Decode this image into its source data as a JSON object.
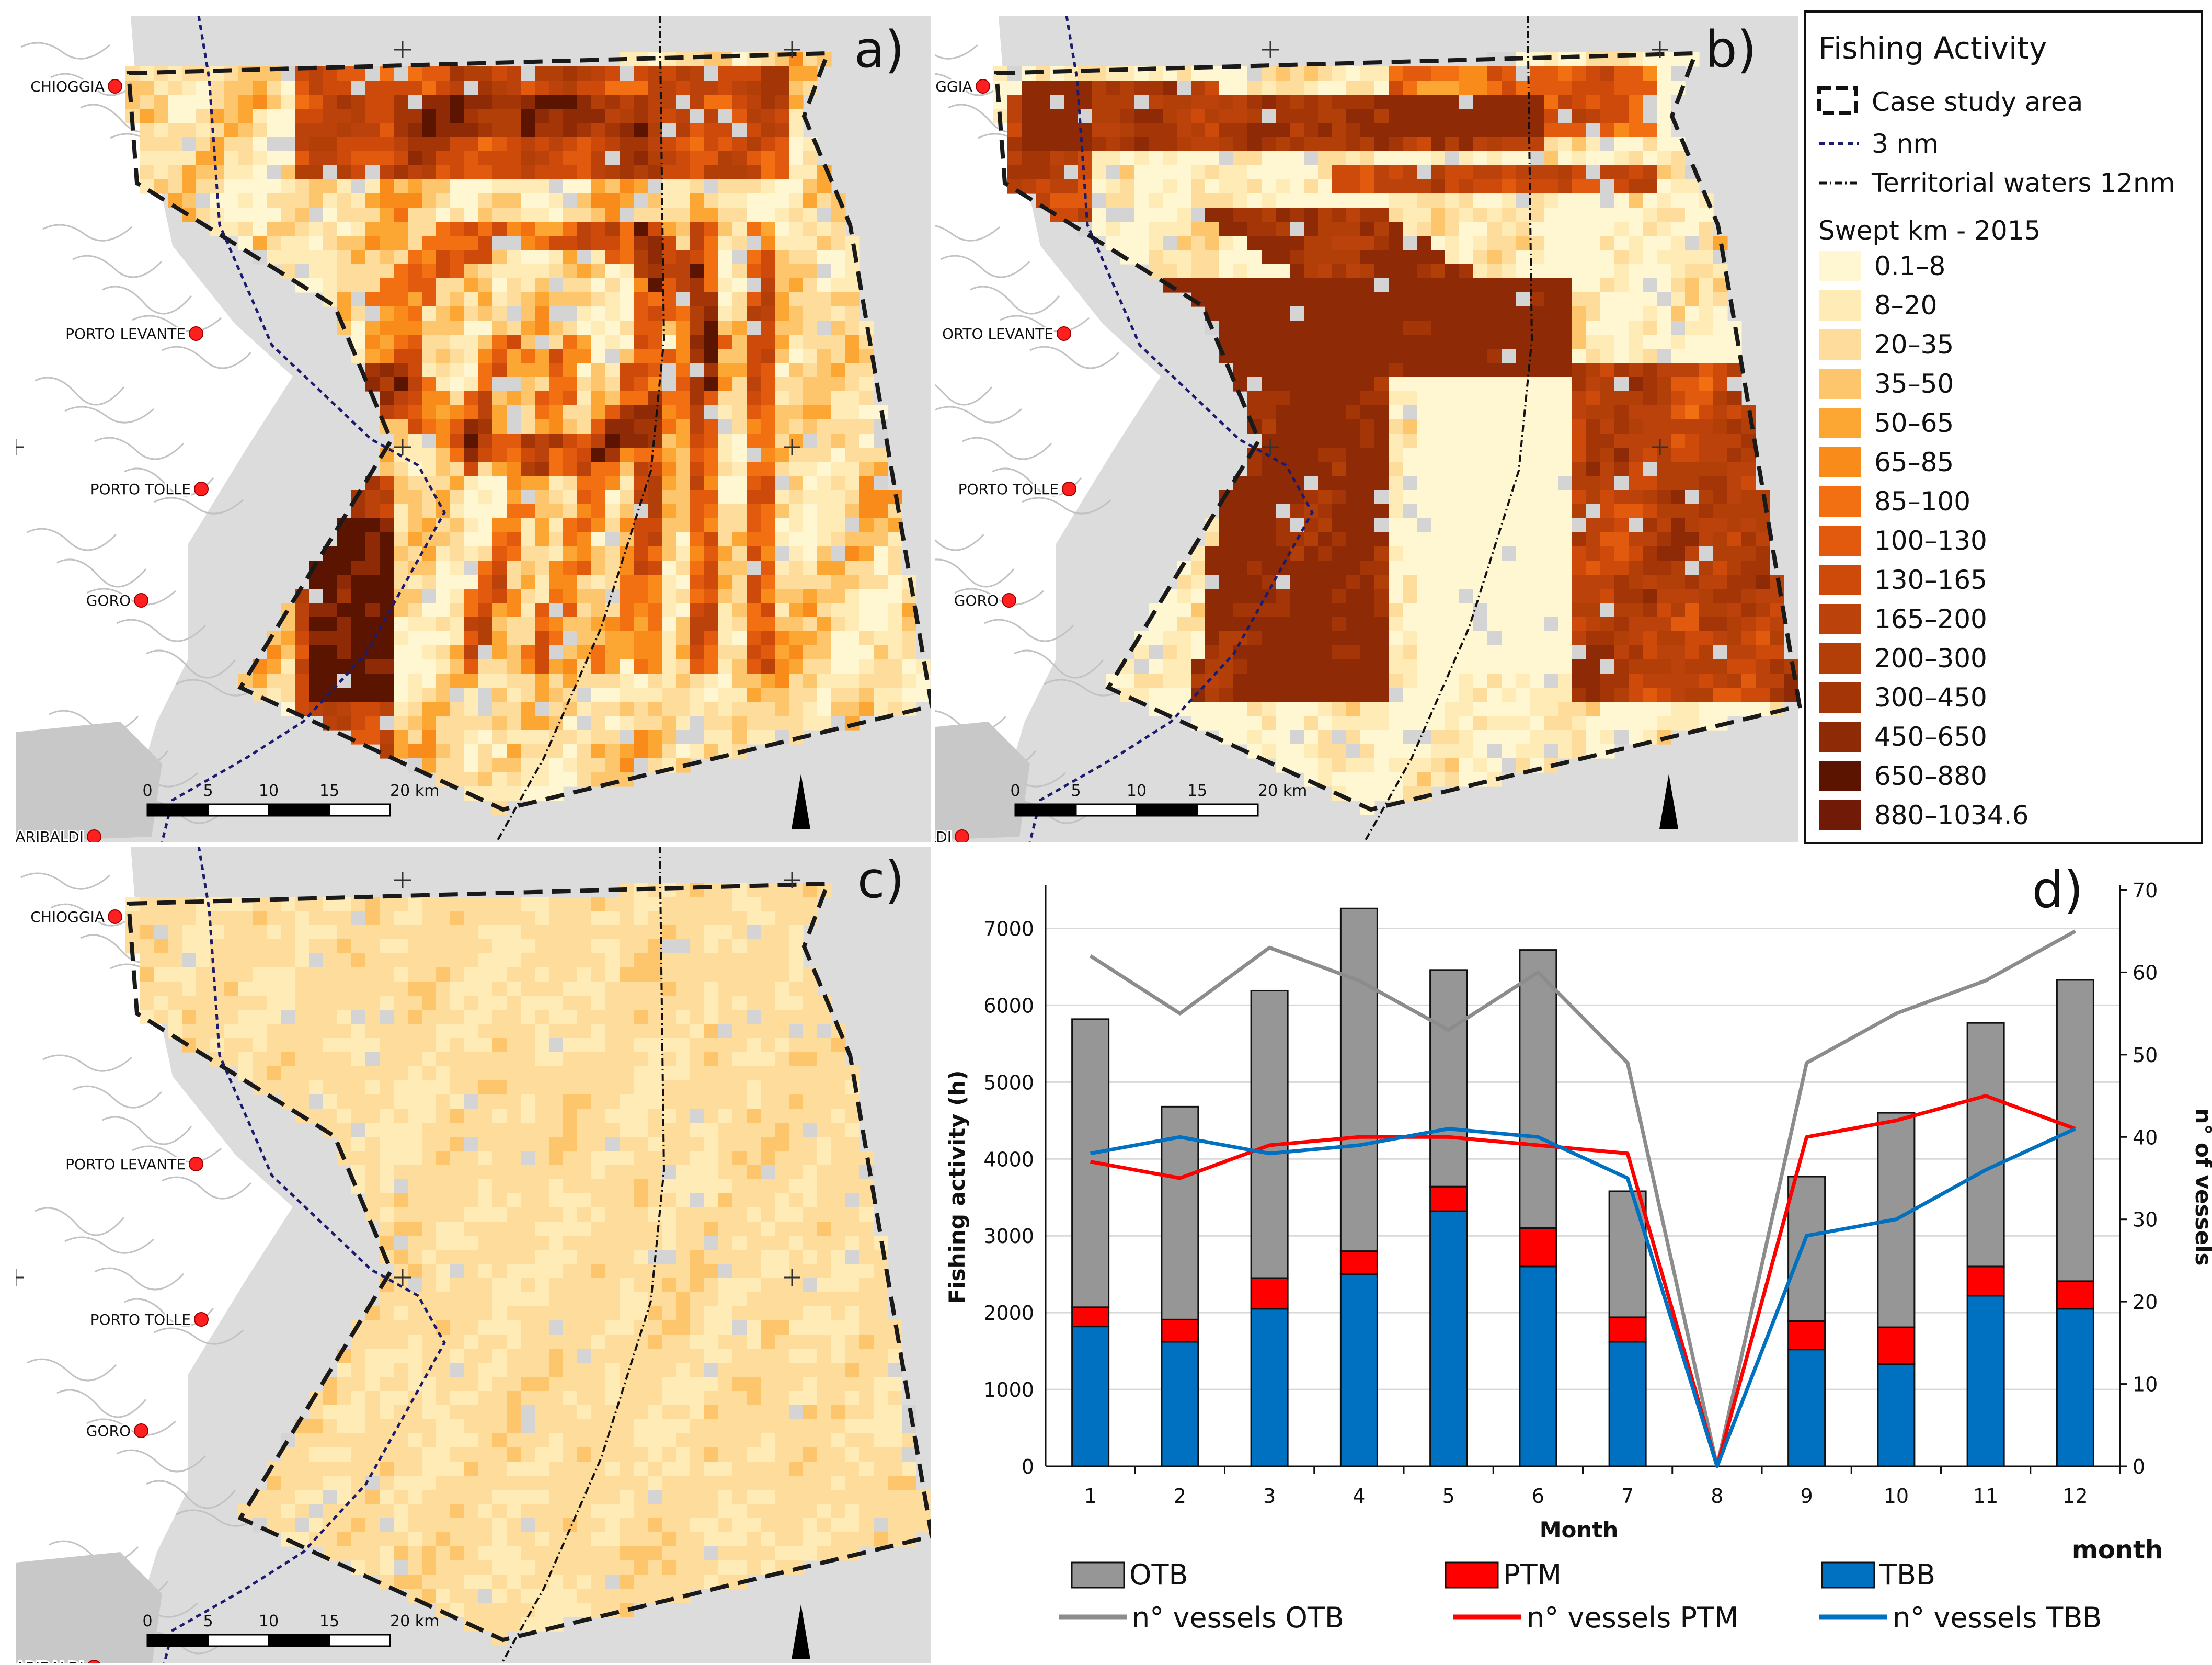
{
  "panels": [
    {
      "id": "a",
      "label": "a)",
      "grid": "a"
    },
    {
      "id": "b",
      "label": "b)",
      "grid": "b"
    },
    {
      "id": "c",
      "label": "c)",
      "grid": "c"
    }
  ],
  "towns": [
    {
      "name": "CHIOGGIA",
      "a": "CHIOGGIA",
      "b": "IOGGIA",
      "c": "CHIOGGIA"
    },
    {
      "name": "PORTO LEVANTE",
      "a": "PORTO LEVANTE",
      "b": "ORTO LEVANTE",
      "c": "PORTO LEVANTE"
    },
    {
      "name": "PORTO TOLLE",
      "a": "PORTO TOLLE",
      "b": "PORTO TOLLE",
      "c": "PORTO TOLLE"
    },
    {
      "name": "GORO",
      "a": "GORO",
      "b": "GORO",
      "c": "GORO"
    },
    {
      "name": "GARIBALDI",
      "a": "ARIBALDI",
      "b": "LDI",
      "c": "ARIBALDI"
    }
  ],
  "scalebar": {
    "ticks": [
      "0",
      "5",
      "10",
      "15",
      "20 km"
    ]
  },
  "legend": {
    "title": "Fishing Activity",
    "case_study": "Case study area",
    "nm3": "3 nm",
    "territorial": "Territorial waters 12nm",
    "swept_title": "Swept km - 2015",
    "classes": [
      {
        "label": "0.1–8",
        "color": "#fff6d2"
      },
      {
        "label": "8–20",
        "color": "#ffebb5"
      },
      {
        "label": "20–35",
        "color": "#fedc9c"
      },
      {
        "label": "35–50",
        "color": "#fdc56c"
      },
      {
        "label": "50–65",
        "color": "#fca634"
      },
      {
        "label": "65–85",
        "color": "#f98b1a"
      },
      {
        "label": "85–100",
        "color": "#f26f12"
      },
      {
        "label": "100–130",
        "color": "#e25a0d"
      },
      {
        "label": "130–165",
        "color": "#cd4a0b"
      },
      {
        "label": "165–200",
        "color": "#bb420a"
      },
      {
        "label": "200–300",
        "color": "#b23f08"
      },
      {
        "label": "300–450",
        "color": "#a43507"
      },
      {
        "label": "450–650",
        "color": "#8e2a05"
      },
      {
        "label": "650–880",
        "color": "#5a1400"
      },
      {
        "label": "880–1034.6",
        "color": "#711a08"
      }
    ]
  },
  "chart_data": {
    "type": "bar",
    "panel_label": "d)",
    "title": "",
    "xlabel": "Month",
    "ylabel": "Fishing activity (h)",
    "y2label": "n° of vessels",
    "extra_label": "month",
    "categories": [
      "1",
      "2",
      "3",
      "4",
      "5",
      "6",
      "7",
      "8",
      "9",
      "10",
      "11",
      "12"
    ],
    "ylim": [
      0,
      7500
    ],
    "yticks": [
      "0",
      "1000",
      "2000",
      "3000",
      "4000",
      "5000",
      "6000",
      "7000"
    ],
    "y2lim": [
      0,
      70
    ],
    "y2ticks": [
      "0",
      "10",
      "20",
      "30",
      "40",
      "50",
      "60",
      "70"
    ],
    "stacked_series": [
      {
        "name": "TBB",
        "color": "#0070c0",
        "values": [
          1820,
          1620,
          2050,
          2500,
          3320,
          2600,
          1620,
          0,
          1520,
          1330,
          2220,
          2050
        ]
      },
      {
        "name": "PTM",
        "color": "#ff0000",
        "values": [
          250,
          290,
          400,
          300,
          320,
          500,
          320,
          0,
          370,
          480,
          380,
          360
        ]
      },
      {
        "name": "OTB",
        "color": "#969696",
        "values": [
          3750,
          2770,
          3740,
          4460,
          2820,
          3620,
          1640,
          0,
          1880,
          2790,
          3170,
          3920
        ]
      }
    ],
    "line_series": [
      {
        "name": "n° vessels OTB",
        "color": "#8c8c8c",
        "values": [
          62,
          55,
          63,
          59,
          53,
          60,
          49,
          0,
          49,
          55,
          59,
          65
        ]
      },
      {
        "name": "n° vessels PTM",
        "color": "#ff0000",
        "values": [
          37,
          35,
          39,
          40,
          40,
          39,
          38,
          0,
          40,
          42,
          45,
          41
        ]
      },
      {
        "name": "n° vessels TBB",
        "color": "#0070c0",
        "values": [
          38,
          40,
          38,
          39,
          41,
          40,
          35,
          0,
          28,
          30,
          36,
          41
        ]
      }
    ]
  }
}
